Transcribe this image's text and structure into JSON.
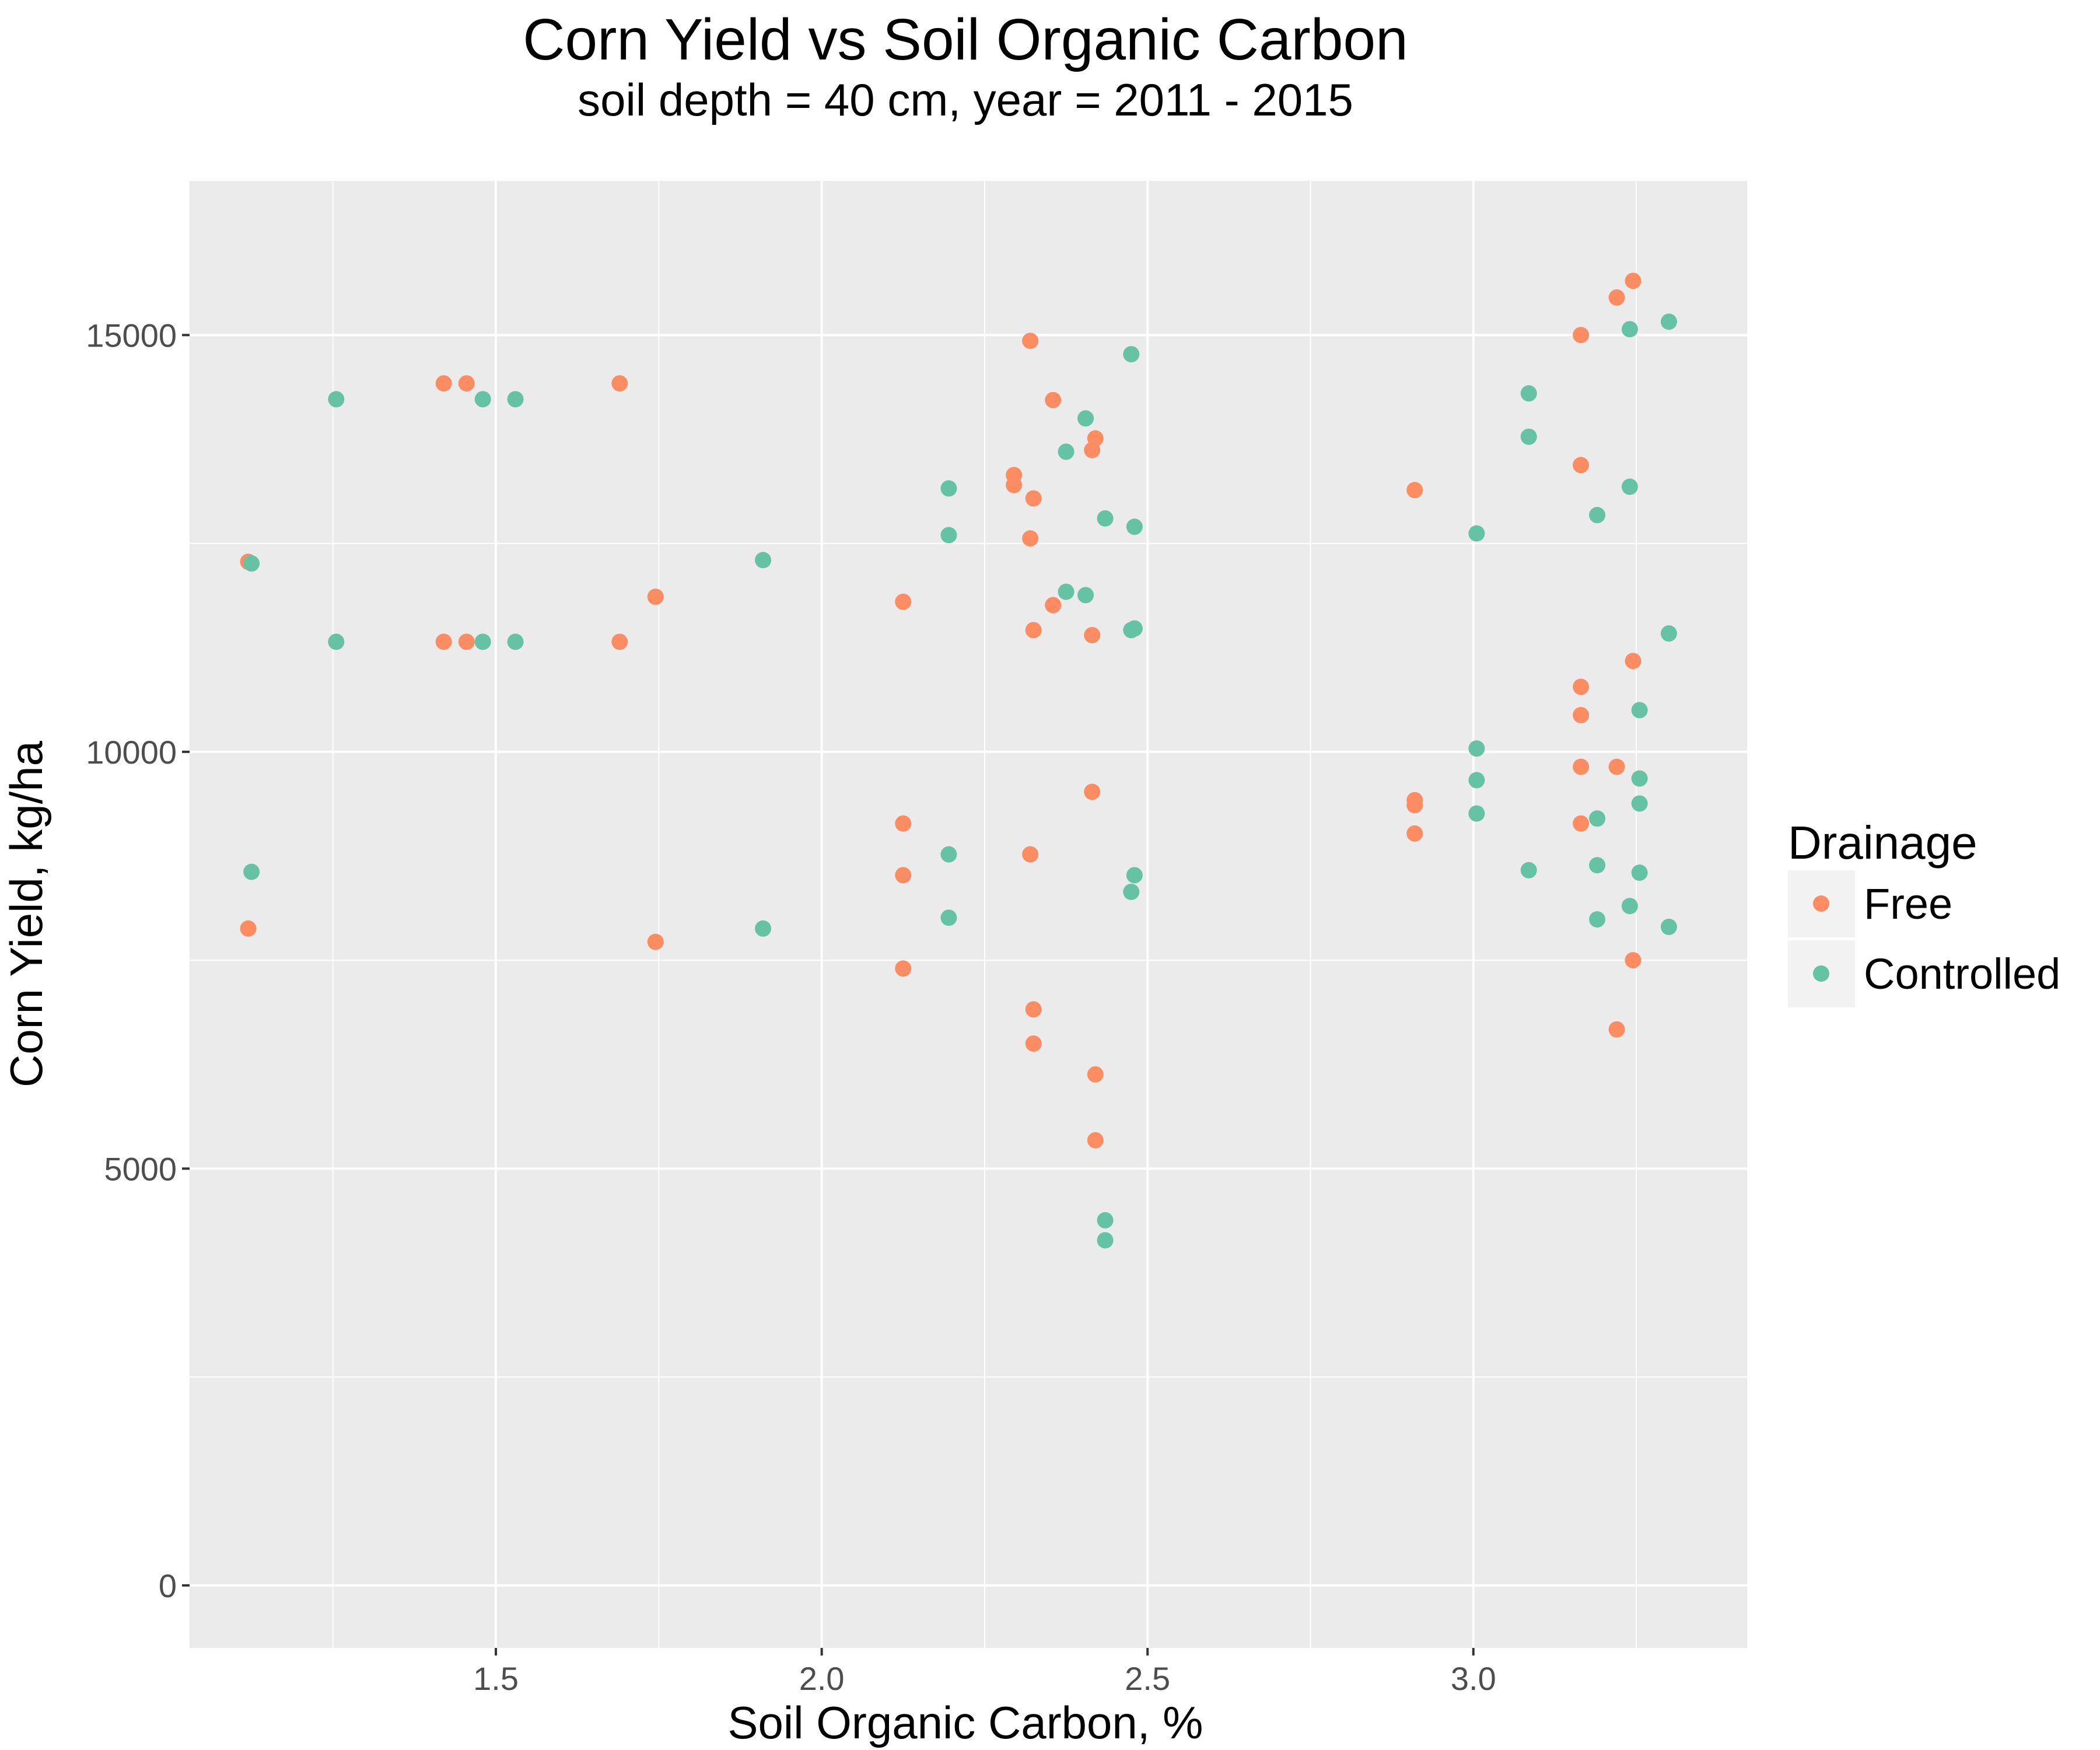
{
  "chart_data": {
    "type": "scatter",
    "title": "Corn Yield vs Soil Organic Carbon",
    "subtitle": "soil depth = 40 cm, year = 2011 - 2015",
    "xlabel": "Soil Organic Carbon, %",
    "ylabel": "Corn Yield, kg/ha",
    "xlim": [
      1.03,
      3.42
    ],
    "ylim": [
      -750,
      16850
    ],
    "xticks": [
      "1.5",
      "2.0",
      "2.5",
      "3.0"
    ],
    "yticks": [
      "0",
      "5000",
      "10000",
      "15000"
    ],
    "grid": true,
    "legend": {
      "title": "Drainage",
      "position": "right"
    },
    "series": [
      {
        "name": "Free",
        "color": "#fc8d62",
        "points": [
          [
            1.12,
            12280
          ],
          [
            1.12,
            7880
          ],
          [
            1.42,
            14420
          ],
          [
            1.42,
            11320
          ],
          [
            1.455,
            14420
          ],
          [
            1.455,
            11320
          ],
          [
            1.69,
            14420
          ],
          [
            1.69,
            11320
          ],
          [
            1.745,
            11860
          ],
          [
            1.745,
            7720
          ],
          [
            2.125,
            11800
          ],
          [
            2.125,
            9140
          ],
          [
            2.125,
            8520
          ],
          [
            2.125,
            7400
          ],
          [
            2.295,
            13320
          ],
          [
            2.295,
            13200
          ],
          [
            2.32,
            14930
          ],
          [
            2.32,
            12560
          ],
          [
            2.32,
            8770
          ],
          [
            2.325,
            13040
          ],
          [
            2.325,
            11460
          ],
          [
            2.325,
            6910
          ],
          [
            2.325,
            6500
          ],
          [
            2.355,
            14220
          ],
          [
            2.355,
            11760
          ],
          [
            2.415,
            13620
          ],
          [
            2.415,
            11400
          ],
          [
            2.415,
            9520
          ],
          [
            2.42,
            13760
          ],
          [
            2.42,
            6130
          ],
          [
            2.42,
            5340
          ],
          [
            2.91,
            13140
          ],
          [
            2.91,
            9420
          ],
          [
            2.91,
            9360
          ],
          [
            2.91,
            9020
          ],
          [
            3.165,
            15000
          ],
          [
            3.165,
            13440
          ],
          [
            3.165,
            10780
          ],
          [
            3.165,
            10440
          ],
          [
            3.165,
            9820
          ],
          [
            3.165,
            9140
          ],
          [
            3.22,
            15450
          ],
          [
            3.22,
            9820
          ],
          [
            3.22,
            6670
          ],
          [
            3.245,
            15650
          ],
          [
            3.245,
            11090
          ],
          [
            3.245,
            7500
          ]
        ]
      },
      {
        "name": "Controlled",
        "color": "#66c2a5",
        "points": [
          [
            1.125,
            12260
          ],
          [
            1.125,
            8560
          ],
          [
            1.255,
            14230
          ],
          [
            1.255,
            11320
          ],
          [
            1.48,
            14230
          ],
          [
            1.48,
            11320
          ],
          [
            1.53,
            14230
          ],
          [
            1.53,
            11320
          ],
          [
            1.91,
            12300
          ],
          [
            1.91,
            7880
          ],
          [
            2.195,
            13160
          ],
          [
            2.195,
            12600
          ],
          [
            2.195,
            8770
          ],
          [
            2.195,
            8010
          ],
          [
            2.375,
            13600
          ],
          [
            2.375,
            11920
          ],
          [
            2.405,
            14000
          ],
          [
            2.405,
            11880
          ],
          [
            2.435,
            12800
          ],
          [
            2.435,
            4380
          ],
          [
            2.435,
            4140
          ],
          [
            2.475,
            14770
          ],
          [
            2.475,
            11460
          ],
          [
            2.475,
            8320
          ],
          [
            2.48,
            12700
          ],
          [
            2.48,
            11480
          ],
          [
            2.48,
            8520
          ],
          [
            3.005,
            12620
          ],
          [
            3.005,
            10040
          ],
          [
            3.005,
            9660
          ],
          [
            3.005,
            9260
          ],
          [
            3.085,
            14300
          ],
          [
            3.085,
            13780
          ],
          [
            3.085,
            8580
          ],
          [
            3.19,
            12840
          ],
          [
            3.19,
            9200
          ],
          [
            3.19,
            8640
          ],
          [
            3.19,
            7990
          ],
          [
            3.24,
            15070
          ],
          [
            3.24,
            13180
          ],
          [
            3.24,
            8150
          ],
          [
            3.255,
            10500
          ],
          [
            3.255,
            9680
          ],
          [
            3.255,
            9380
          ],
          [
            3.255,
            8550
          ],
          [
            3.3,
            15160
          ],
          [
            3.3,
            11420
          ],
          [
            3.3,
            7900
          ]
        ]
      }
    ]
  }
}
